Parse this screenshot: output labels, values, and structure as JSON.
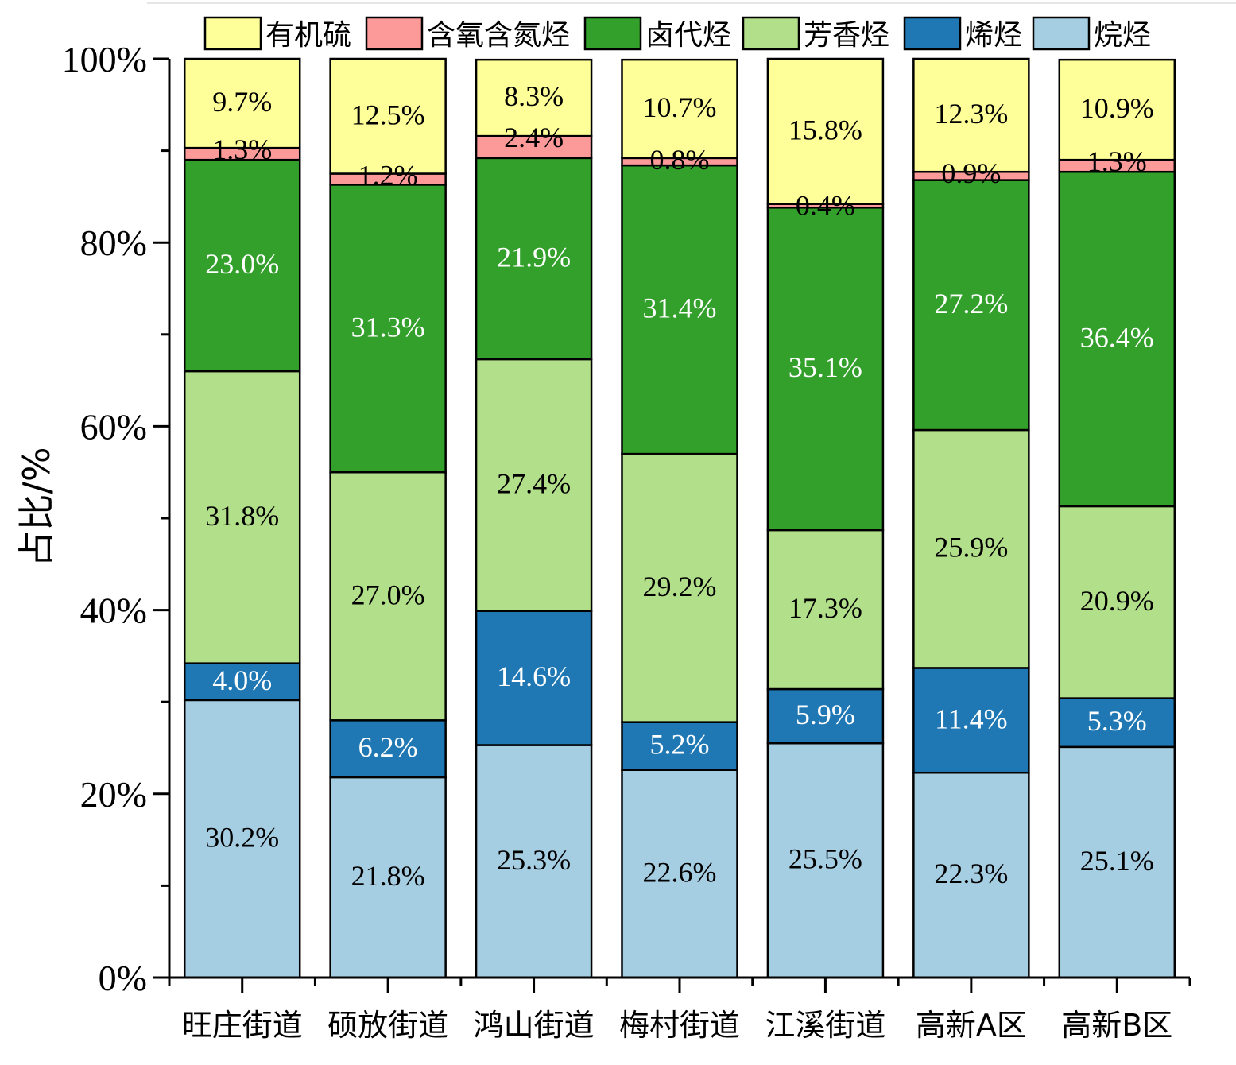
{
  "chart_data": {
    "type": "bar",
    "stacked": true,
    "title": "",
    "xlabel": "",
    "ylabel": "占比/%",
    "ylim": [
      0,
      100
    ],
    "ytick_labels": [
      "0%",
      "20%",
      "40%",
      "60%",
      "80%",
      "100%"
    ],
    "ytick_values": [
      0,
      20,
      40,
      60,
      80,
      100
    ],
    "grid": false,
    "legend_position": "top",
    "categories": [
      "旺庄街道",
      "硕放街道",
      "鸿山街道",
      "梅村街道",
      "江溪街道",
      "高新A区",
      "高新B区"
    ],
    "series": [
      {
        "name": "烷烃",
        "color": "#a6cee3",
        "label_color": "#000000",
        "values": [
          30.2,
          21.8,
          25.3,
          22.6,
          25.5,
          22.3,
          25.1
        ],
        "labels": [
          "30.2%",
          "21.8%",
          "25.3%",
          "22.6%",
          "25.5%",
          "22.3%",
          "25.1%"
        ]
      },
      {
        "name": "烯烃",
        "color": "#1f78b4",
        "label_color": "#ffffff",
        "values": [
          4.0,
          6.2,
          14.6,
          5.2,
          5.9,
          11.4,
          5.3
        ],
        "labels": [
          "4.0%",
          "6.2%",
          "14.6%",
          "5.2%",
          "5.9%",
          "11.4%",
          "5.3%"
        ]
      },
      {
        "name": "芳香烃",
        "color": "#b2df8a",
        "label_color": "#000000",
        "values": [
          31.8,
          27.0,
          27.4,
          29.2,
          17.3,
          25.9,
          20.9
        ],
        "labels": [
          "31.8%",
          "27.0%",
          "27.4%",
          "29.2%",
          "17.3%",
          "25.9%",
          "20.9%"
        ]
      },
      {
        "name": "卤代烃",
        "color": "#33a02c",
        "label_color": "#ffffff",
        "values": [
          23.0,
          31.3,
          21.9,
          31.4,
          35.1,
          27.2,
          36.4
        ],
        "labels": [
          "23.0%",
          "31.3%",
          "21.9%",
          "31.4%",
          "35.1%",
          "27.2%",
          "36.4%"
        ]
      },
      {
        "name": "含氧含氮烃",
        "color": "#fb9a99",
        "label_color": "#000000",
        "values": [
          1.3,
          1.2,
          2.4,
          0.8,
          0.4,
          0.9,
          1.3
        ],
        "labels": [
          "1.3%",
          "1.2%",
          "2.4%",
          "0.8%",
          "0.4%",
          "0.9%",
          "1.3%"
        ]
      },
      {
        "name": "有机硫",
        "color": "#ffff99",
        "label_color": "#000000",
        "values": [
          9.7,
          12.5,
          8.3,
          10.7,
          15.8,
          12.3,
          10.9
        ],
        "labels": [
          "9.7%",
          "12.5%",
          "8.3%",
          "10.7%",
          "15.8%",
          "12.3%",
          "10.9%"
        ]
      }
    ],
    "legend_order": [
      "有机硫",
      "含氧含氮烃",
      "卤代烃",
      "芳香烃",
      "烯烃",
      "烷烃"
    ]
  }
}
